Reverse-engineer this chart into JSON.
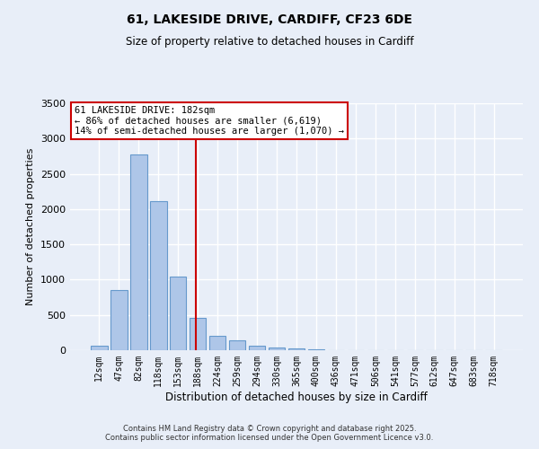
{
  "title_line1": "61, LAKESIDE DRIVE, CARDIFF, CF23 6DE",
  "title_line2": "Size of property relative to detached houses in Cardiff",
  "xlabel": "Distribution of detached houses by size in Cardiff",
  "ylabel": "Number of detached properties",
  "categories": [
    "12sqm",
    "47sqm",
    "82sqm",
    "118sqm",
    "153sqm",
    "188sqm",
    "224sqm",
    "259sqm",
    "294sqm",
    "330sqm",
    "365sqm",
    "400sqm",
    "436sqm",
    "471sqm",
    "506sqm",
    "541sqm",
    "577sqm",
    "612sqm",
    "647sqm",
    "683sqm",
    "718sqm"
  ],
  "values": [
    65,
    850,
    2780,
    2110,
    1040,
    460,
    205,
    145,
    65,
    35,
    20,
    10,
    5,
    3,
    0,
    0,
    0,
    0,
    0,
    0,
    0
  ],
  "bar_color": "#aec6e8",
  "bar_edge_color": "#6699cc",
  "background_color": "#e8eef8",
  "grid_color": "#ffffff",
  "vline_x": 4.9,
  "vline_color": "#cc0000",
  "annotation_title": "61 LAKESIDE DRIVE: 182sqm",
  "annotation_line1": "← 86% of detached houses are smaller (6,619)",
  "annotation_line2": "14% of semi-detached houses are larger (1,070) →",
  "annotation_box_color": "#cc0000",
  "ylim": [
    0,
    3500
  ],
  "yticks": [
    0,
    500,
    1000,
    1500,
    2000,
    2500,
    3000,
    3500
  ],
  "footer_line1": "Contains HM Land Registry data © Crown copyright and database right 2025.",
  "footer_line2": "Contains public sector information licensed under the Open Government Licence v3.0."
}
